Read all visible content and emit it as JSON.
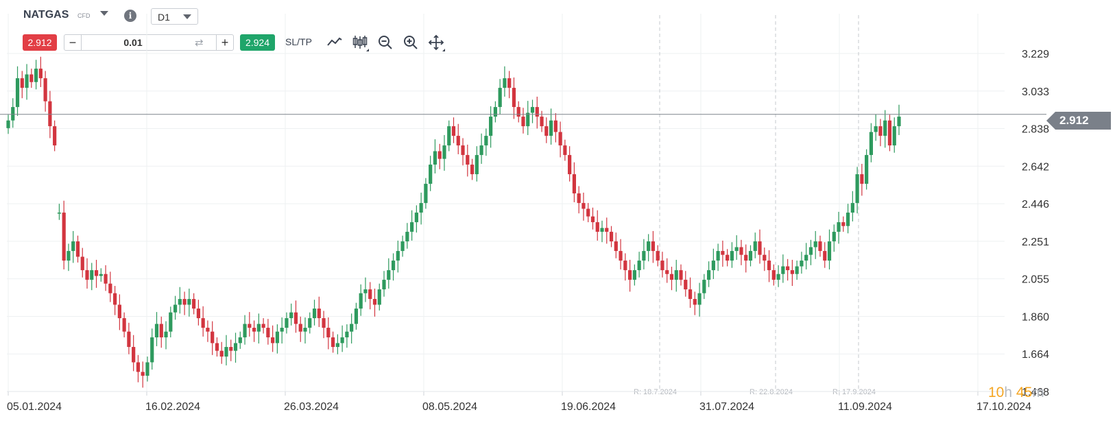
{
  "toolbar": {
    "symbol": "NATGAS",
    "symbol_type": "CFD",
    "timeframe": "D1",
    "sell_price": "2.912",
    "buy_price": "2.924",
    "quantity": "0.01",
    "minus_label": "−",
    "plus_label": "+",
    "sltp_label": "SL/TP",
    "tools": [
      "line-chart-icon",
      "candlestick-icon",
      "zoom-out-icon",
      "zoom-in-icon",
      "move-icon"
    ]
  },
  "price_axis": {
    "labels": [
      "3.229",
      "3.033",
      "2.838",
      "2.642",
      "2.446",
      "2.251",
      "2.055",
      "1.860",
      "1.664",
      "1.468"
    ],
    "current_price_tag": "2.912"
  },
  "date_axis": {
    "labels": [
      "05.01.2024",
      "16.02.2024",
      "26.03.2024",
      "08.05.2024",
      "19.06.2024",
      "31.07.2024",
      "11.09.2024",
      "17.10.2024"
    ]
  },
  "release_markers": [
    "R: 18.7.2024",
    "R: 22.8.2024",
    "R: 17.9.2024"
  ],
  "countdown": {
    "hours": "10",
    "hours_unit": "h",
    "minutes": "45",
    "minutes_unit": "m"
  },
  "colors": {
    "bull": "#2e9a5e",
    "bear": "#d2353f",
    "grid": "#eef0f2",
    "price_line": "#7d838b",
    "price_tag": "#7a8089"
  },
  "chart_data": {
    "type": "candlestick",
    "ylim": [
      1.468,
      3.229
    ],
    "current_price": 2.912,
    "x_ticks": [
      "05.01.2024",
      "16.02.2024",
      "26.03.2024",
      "08.05.2024",
      "19.06.2024",
      "31.07.2024",
      "11.09.2024",
      "17.10.2024"
    ],
    "closes": [
      2.88,
      2.95,
      3.1,
      3.05,
      3.12,
      3.08,
      3.15,
      3.1,
      2.98,
      2.85,
      2.75,
      2.4,
      2.15,
      2.2,
      2.25,
      2.17,
      2.1,
      2.05,
      2.1,
      2.07,
      2.08,
      2.03,
      1.98,
      1.92,
      1.85,
      1.78,
      1.7,
      1.62,
      1.57,
      1.55,
      1.62,
      1.75,
      1.82,
      1.75,
      1.78,
      1.88,
      1.92,
      1.95,
      1.92,
      1.95,
      1.9,
      1.85,
      1.8,
      1.78,
      1.72,
      1.68,
      1.65,
      1.7,
      1.68,
      1.72,
      1.75,
      1.82,
      1.8,
      1.78,
      1.82,
      1.8,
      1.75,
      1.72,
      1.78,
      1.8,
      1.85,
      1.88,
      1.82,
      1.78,
      1.8,
      1.85,
      1.9,
      1.85,
      1.8,
      1.75,
      1.7,
      1.72,
      1.75,
      1.78,
      1.82,
      1.9,
      1.98,
      2.0,
      1.95,
      1.92,
      2.0,
      2.05,
      2.1,
      2.15,
      2.2,
      2.25,
      2.3,
      2.35,
      2.4,
      2.45,
      2.55,
      2.65,
      2.72,
      2.68,
      2.75,
      2.85,
      2.8,
      2.75,
      2.7,
      2.65,
      2.6,
      2.7,
      2.75,
      2.8,
      2.9,
      2.95,
      3.05,
      3.1,
      3.05,
      2.95,
      2.9,
      2.85,
      2.92,
      2.95,
      2.9,
      2.85,
      2.8,
      2.88,
      2.82,
      2.75,
      2.7,
      2.6,
      2.5,
      2.45,
      2.42,
      2.38,
      2.35,
      2.3,
      2.32,
      2.3,
      2.25,
      2.2,
      2.15,
      2.1,
      2.05,
      2.1,
      2.15,
      2.2,
      2.25,
      2.2,
      2.15,
      2.1,
      2.08,
      2.05,
      2.1,
      2.05,
      2.0,
      1.95,
      1.92,
      1.98,
      2.05,
      2.1,
      2.15,
      2.2,
      2.18,
      2.15,
      2.2,
      2.22,
      2.18,
      2.15,
      2.2,
      2.25,
      2.18,
      2.15,
      2.1,
      2.05,
      2.08,
      2.12,
      2.1,
      2.08,
      2.12,
      2.15,
      2.18,
      2.22,
      2.25,
      2.2,
      2.15,
      2.25,
      2.3,
      2.35,
      2.33,
      2.4,
      2.45,
      2.6,
      2.55,
      2.7,
      2.82,
      2.85,
      2.8,
      2.88,
      2.75,
      2.85,
      2.9
    ],
    "marker_dates": [
      "18.7.2024",
      "22.8.2024",
      "17.9.2024"
    ]
  }
}
